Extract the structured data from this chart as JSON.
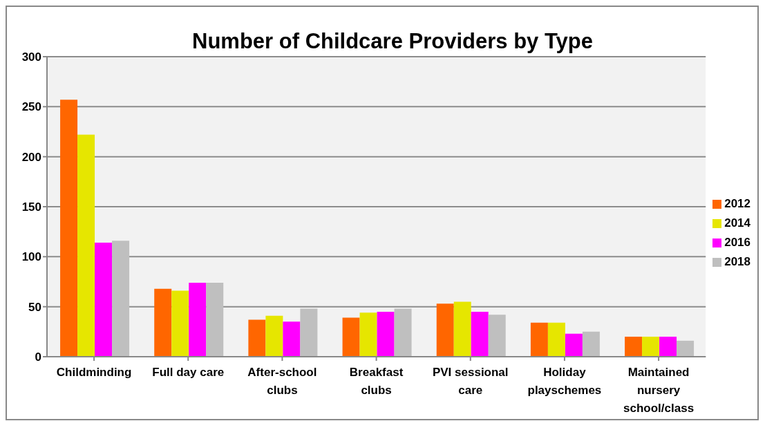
{
  "chart_data": {
    "type": "bar",
    "title": "Number of Childcare Providers by Type",
    "categories": [
      "Childminding",
      "Full day care",
      "After-school clubs",
      "Breakfast clubs",
      "PVI sessional care",
      "Holiday playschemes",
      "Maintained nursery school/class"
    ],
    "series": [
      {
        "name": "2012",
        "color": "#ff6600",
        "values": [
          257,
          68,
          37,
          39,
          53,
          34,
          20
        ]
      },
      {
        "name": "2014",
        "color": "#e6e600",
        "values": [
          222,
          66,
          41,
          44,
          55,
          34,
          20
        ]
      },
      {
        "name": "2016",
        "color": "#ff00ff",
        "values": [
          114,
          74,
          35,
          45,
          45,
          23,
          20
        ]
      },
      {
        "name": "2018",
        "color": "#bfbfbf",
        "values": [
          116,
          74,
          48,
          48,
          42,
          25,
          16
        ]
      }
    ],
    "ylim": [
      0,
      300
    ],
    "yticks": [
      0,
      50,
      100,
      150,
      200,
      250,
      300
    ],
    "grid": "y",
    "legend": "right"
  }
}
